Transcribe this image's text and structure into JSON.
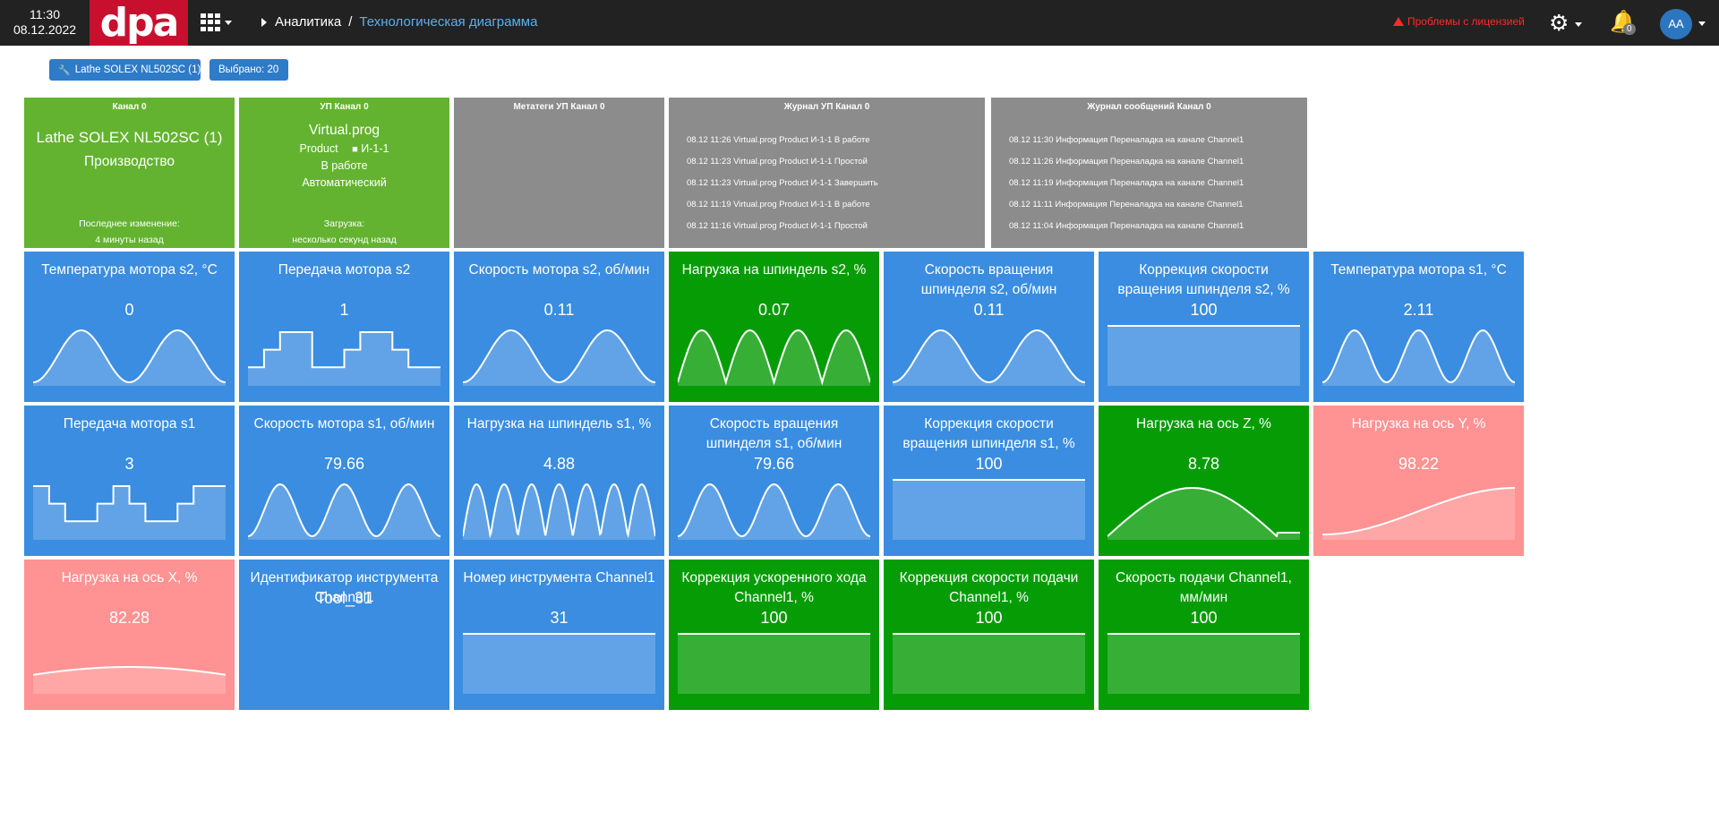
{
  "header": {
    "time": "11:30",
    "date": "08.12.2022",
    "logo": "dpa",
    "apps_icon": "grid-icon",
    "breadcrumb": {
      "root": "Аналитика",
      "separator": "/",
      "current": "Технологическая диаграмма"
    },
    "license_warning": "Проблемы с лицензией",
    "notifications_count": "0",
    "avatar_initials": "AA"
  },
  "filters": {
    "machine": "Lathe SOLEX NL502SC (1)",
    "selected": "Выбрано: 20"
  },
  "info_tiles": {
    "channel": {
      "title": "Канал 0",
      "machine": "Lathe SOLEX NL502SC (1)",
      "state": "Производство",
      "last_change_label": "Последнее изменение:",
      "last_change_value": "4 минуты назад"
    },
    "program": {
      "title": "УП Канал 0",
      "name": "Virtual.prog",
      "product": "Product",
      "part": "И-1-1",
      "status": "В работе",
      "mode": "Автоматический",
      "load_label": "Загрузка:",
      "load_value": "несколько секунд назад"
    },
    "meta": {
      "title": "Метатеги УП Канал 0"
    },
    "program_log": {
      "title": "Журнал УП Канал 0",
      "rows": [
        "08.12 11:26  Virtual.prog Product  И-1-1  В работе",
        "08.12 11:23  Virtual.prog Product  И-1-1  Простой",
        "08.12 11:23  Virtual.prog Product  И-1-1  Завершить",
        "08.12 11:19  Virtual.prog Product  И-1-1  В работе",
        "08.12 11:16  Virtual.prog Product  И-1-1  Простой"
      ]
    },
    "message_log": {
      "title": "Журнал сообщений Канал 0",
      "rows": [
        "08.12 11:30  Информация  Переналадка на канале Channel1",
        "08.12 11:26  Информация  Переналадка на канале Channel1",
        "08.12 11:19  Информация  Переналадка на канале Channel1",
        "08.12 11:11  Информация  Переналадка на канале Channel1",
        "08.12 11:04  Информация  Переналадка на канале Channel1"
      ]
    }
  },
  "metric_tiles": [
    {
      "title": "Температура мотора s2, °C",
      "value": "0",
      "color": "#3a8de0",
      "chart": "sine",
      "periods": 2
    },
    {
      "title": "Передача мотора s2",
      "value": "1",
      "color": "#3a8de0",
      "chart": "step_s2"
    },
    {
      "title": "Скорость мотора s2, об/мин",
      "value": "0.11",
      "color": "#3a8de0",
      "chart": "sine",
      "periods": 2
    },
    {
      "title": "Нагрузка на шпиндель s2, %",
      "value": "0.07",
      "color": "#069c06",
      "chart": "abs",
      "periods": 4
    },
    {
      "title": "Скорость вращения шпинделя s2, об/мин",
      "value": "0.11",
      "color": "#3a8de0",
      "chart": "sine",
      "periods": 2
    },
    {
      "title": "Коррекция скорости вращения шпинделя s2, %",
      "value": "100",
      "color": "#3a8de0",
      "chart": "flat"
    },
    {
      "title": "Температура мотора s1, °C",
      "value": "2.11",
      "color": "#3a8de0",
      "chart": "sine",
      "periods": 3
    },
    {
      "title": "Передача мотора s1",
      "value": "3",
      "color": "#3a8de0",
      "chart": "step_s1"
    },
    {
      "title": "Скорость мотора s1, об/мин",
      "value": "79.66",
      "color": "#3a8de0",
      "chart": "sine",
      "periods": 3
    },
    {
      "title": "Нагрузка на шпиндель s1, %",
      "value": "4.88",
      "color": "#3a8de0",
      "chart": "abs",
      "periods": 7
    },
    {
      "title": "Скорость вращения шпинделя s1, об/мин",
      "value": "79.66",
      "color": "#3a8de0",
      "chart": "sine",
      "periods": 3
    },
    {
      "title": "Коррекция скорости вращения шпинделя s1, %",
      "value": "100",
      "color": "#3a8de0",
      "chart": "flat"
    },
    {
      "title": "Нагрузка на ось Z, %",
      "value": "8.78",
      "color": "#069c06",
      "chart": "hump"
    },
    {
      "title": "Нагрузка на ось Y, %",
      "value": "98.22",
      "color": "#ff9292",
      "chart": "rise"
    },
    {
      "title": "Нагрузка на ось X, %",
      "value": "82.28",
      "color": "#ff9292",
      "chart": "arc"
    },
    {
      "title": "Идентификатор инструмента Channel1",
      "value": "Tool_31",
      "color": "#3a8de0",
      "chart": "none"
    },
    {
      "title": "Номер инструмента Channel1",
      "value": "31",
      "color": "#3a8de0",
      "chart": "flat"
    },
    {
      "title": "Коррекция ускоренного хода Channel1, %",
      "value": "100",
      "color": "#069c06",
      "chart": "flat"
    },
    {
      "title": "Коррекция скорости подачи Channel1, %",
      "value": "100",
      "color": "#069c06",
      "chart": "flat"
    },
    {
      "title": "Скорость подачи Channel1, мм/мин",
      "value": "100",
      "color": "#069c06",
      "chart": "flat"
    }
  ]
}
